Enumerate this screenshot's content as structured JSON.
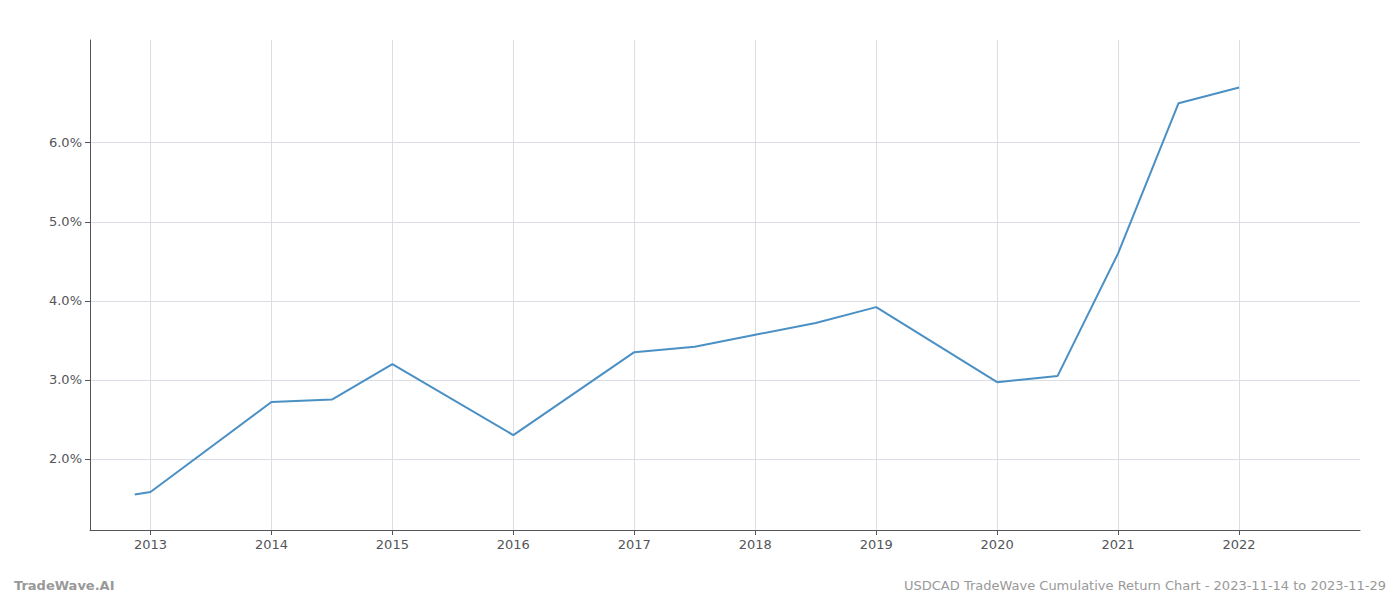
{
  "chart_data": {
    "type": "line",
    "x": [
      2012.87,
      2013.0,
      2014.0,
      2014.5,
      2015.0,
      2016.0,
      2017.0,
      2017.5,
      2018.0,
      2018.5,
      2019.0,
      2020.0,
      2020.5,
      2021.0,
      2021.5,
      2022.0
    ],
    "values": [
      1.55,
      1.58,
      2.72,
      2.75,
      3.2,
      2.3,
      3.35,
      3.42,
      3.57,
      3.72,
      3.92,
      2.97,
      3.05,
      4.6,
      6.5,
      6.7
    ],
    "color": "#4a90c4",
    "xlim": [
      2012.5,
      2023.0
    ],
    "ylim": [
      1.1,
      7.3
    ],
    "xticks": [
      2013,
      2014,
      2015,
      2016,
      2017,
      2018,
      2019,
      2020,
      2021,
      2022
    ],
    "yticks": [
      {
        "value": 2.0,
        "label": "2.0%"
      },
      {
        "value": 3.0,
        "label": "3.0%"
      },
      {
        "value": 4.0,
        "label": "4.0%"
      },
      {
        "value": 5.0,
        "label": "5.0%"
      },
      {
        "value": 6.0,
        "label": "6.0%"
      }
    ],
    "grid": true,
    "annotations": [
      "TradeWave.AI",
      "USDCAD TradeWave Cumulative Return Chart - 2023-11-14 to 2023-11-29"
    ]
  }
}
